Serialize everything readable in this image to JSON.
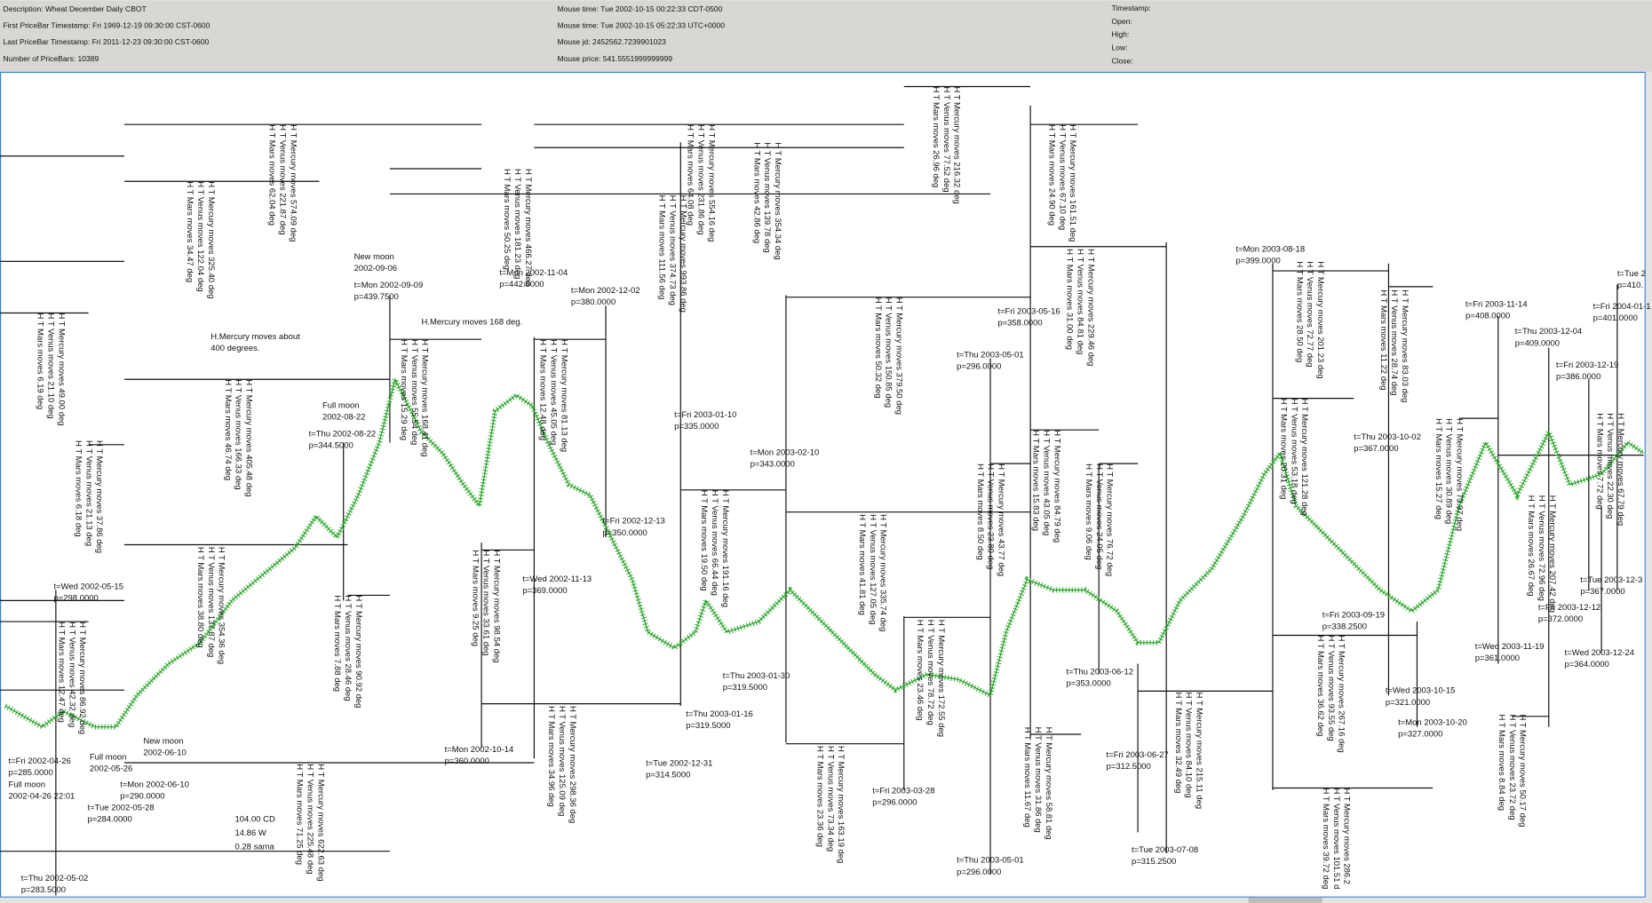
{
  "header": {
    "info": [
      "Description: Wheat December Daily CBOT",
      "First PriceBar Timestamp: Fri 1969-12-19 09:30:00 CST-0600",
      "Last PriceBar Timestamp: Fri 2011-12-23 09:30:00 CST-0600",
      "Number of PriceBars: 10389"
    ],
    "mouse": [
      "Mouse time:  Tue 2002-10-15 00:22:33 CDT-0500",
      "Mouse time:  Tue 2002-10-15 05:22:33 UTC+0000",
      "Mouse jd:    2452562.7239901023",
      "Mouse price:  541.5551999999999"
    ],
    "bar_fields": [
      "Timestamp:",
      "Open:",
      "High:",
      "Low:",
      "Close:"
    ]
  },
  "point_labels": [
    [
      "t=Fri 2002-04-26",
      "p=285.0000"
    ],
    [
      "Full moon",
      "2002-04-26 22:01"
    ],
    [
      "t=Thu 2002-05-02",
      "p=283.5000"
    ],
    [
      "Full moon",
      "2002-05-26"
    ],
    [
      "t=Tue 2002-05-28",
      "p=284.0000"
    ],
    [
      "New moon",
      "2002-06-10"
    ],
    [
      "t=Mon 2002-06-10",
      "p=290.0000"
    ],
    [
      "t=Wed 2002-05-15",
      "p=298.0000"
    ],
    [
      "Full moon",
      "2002-08-22"
    ],
    [
      "t=Thu 2002-08-22",
      "p=344.5000"
    ],
    [
      "New moon",
      "2002-09-06"
    ],
    [
      "t=Mon 2002-09-09",
      "p=439.7500"
    ],
    [
      "H.Mercury moves about",
      "400 degrees."
    ],
    [
      "H.Mercury moves 168 deg."
    ],
    [
      "t=Mon 2002-11-04",
      "p=442.5000"
    ],
    [
      "t=Mon 2002-12-02",
      "p=380.0000"
    ],
    [
      "t=Fri 2003-01-10",
      "p=335.0000"
    ],
    [
      "t=Mon 2003-02-10",
      "p=343.0000"
    ],
    [
      "t=Fri 2002-12-13",
      "p=350.0000"
    ],
    [
      "t=Wed 2002-11-13",
      "p=369.0000"
    ],
    [
      "t=Mon 2002-10-14",
      "p=360.0000"
    ],
    [
      "t=Tue 2002-12-31",
      "p=314.5000"
    ],
    [
      "t=Thu 2003-01-16",
      "p=319.5000"
    ],
    [
      "t=Thu 2003-01-30",
      "p=319.5000"
    ],
    [
      "t=Fri 2003-03-28",
      "p=296.0000"
    ],
    [
      "t=Thu 2003-05-01",
      "p=296.0000"
    ],
    [
      "t=Thu 2003-05-01",
      "p=296.0000"
    ],
    [
      "t=Fri 2003-05-16",
      "p=358.0000"
    ],
    [
      "t=Thu 2003-06-12",
      "p=353.0000"
    ],
    [
      "t=Fri 2003-06-27",
      "p=312.5000"
    ],
    [
      "t=Tue 2003-07-08",
      "p=315.2500"
    ],
    [
      "t=Mon 2003-08-18",
      "p=399.0000"
    ],
    [
      "t=Thu 2003-10-02",
      "p=367.0000"
    ],
    [
      "t=Fri 2003-09-19",
      "p=338.2500"
    ],
    [
      "t=Wed 2003-10-15",
      "p=321.0000"
    ],
    [
      "t=Mon 2003-10-20",
      "p=327.0000"
    ],
    [
      "t=Fri 2003-11-14",
      "p=408.0000"
    ],
    [
      "t=Thu 2003-12-04",
      "p=409.0000"
    ],
    [
      "t=Fri 2003-12-19",
      "p=386.0000"
    ],
    [
      "t=Fri 2004-01-1",
      "p=401.0000"
    ],
    [
      "t=Tue 2",
      "p=410."
    ],
    [
      "t=Wed 2003-11-19",
      "p=361.0000"
    ],
    [
      "t=Fri 2003-12-12",
      "p=372.0000"
    ],
    [
      "t=Tue 2003-12-3",
      "p=367.0000"
    ],
    [
      "t=Wed 2003-12-24",
      "p=364.0000"
    ],
    [
      "104.00 CD",
      "14.86 W",
      "0.28 sama"
    ]
  ],
  "planet_notes": [
    [
      "H T Mercury moves 574.09 deg",
      "H T Venus moves 221.87 deg",
      "H T Mars moves 62.04 deg"
    ],
    [
      "H T Mercury moves 325.40 deg",
      "H T Venus moves 122.04 deg",
      "H T Mars moves 34.47 deg"
    ],
    [
      "H T Mercury moves 49.00 deg",
      "H T Venus moves 21.10 deg",
      "H T Mars moves 6.19 deg"
    ],
    [
      "H T Mercury moves 37.86 deg",
      "H T Venus moves 21.13 deg",
      "H T Mars moves 6.18 deg"
    ],
    [
      "H T Mercury moves 405.48 deg",
      "H T Venus moves 166.33 deg",
      "H T Mars moves 46.74 deg"
    ],
    [
      "H T Mercury moves 354.36 deg",
      "H T Venus moves 137.87 deg",
      "H T Mars moves 38.80 deg"
    ],
    [
      "H T Mercury moves 86.92 deg",
      "H T Venus moves 42.32 deg",
      "H T Mars moves 12.47 deg"
    ],
    [
      "H T Mercury moves 90.92 deg",
      "H T Venus moves 28.46 deg",
      "H T Mars moves 7.88 deg"
    ],
    [
      "H T Mercury moves 622.63 deg",
      "H T Venus moves 225.48 deg",
      "H T Mars moves 71.25 deg"
    ],
    [
      "H T Mercury moves 168.41 deg",
      "H T Venus moves 55.54 deg",
      "H T Mars moves 15.29 deg"
    ],
    [
      "H T Mercury moves 466.27 deg",
      "H T Venus moves 181.23 deg",
      "H T Mars moves 50.25 deg"
    ],
    [
      "H T Mercury moves 81.13 deg",
      "H T Venus moves 45.05 deg",
      "H T Mars moves 12.48 deg"
    ],
    [
      "H T Mercury moves 98.54 deg",
      "H T Venus moves 33.61 deg",
      "H T Mars moves 9.25 deg"
    ],
    [
      "H T Mercury moves 298.36 deg",
      "H T Venus moves 125.09 deg",
      "H T Mars moves 34.96 deg"
    ],
    [
      "H T Mercury moves 554.16 deg",
      "H T Venus moves 231.86 deg",
      "H T Mars moves 64.08 deg"
    ],
    [
      "H T Mercury moves 993.86 deg",
      "H T Venus moves 374.73 deg",
      "H T Mars moves 111.56 deg"
    ],
    [
      "H T Mercury moves 354.34 deg",
      "H T Venus moves 139.78 deg",
      "H T Mars moves 42.86 deg"
    ],
    [
      "H T Mercury moves 216.32 deg",
      "H T Venus moves 77.52 deg",
      "H T Mars moves 26.96 deg"
    ],
    [
      "H T Mercury moves 161.51 deg",
      "H T Venus moves 67.10 deg",
      "H T Mars moves 24.90 deg"
    ],
    [
      "H T Mercury moves 229.46 deg",
      "H T Venus moves 84.81 deg",
      "H T Mars moves 31.00 deg"
    ],
    [
      "H T Mercury moves 379.50 deg",
      "H T Venus moves 150.85 deg",
      "H T Mars moves 50.32 deg"
    ],
    [
      "H T Mercury moves 191.16 deg",
      "H T Venus moves 66.44 deg",
      "H T Mars moves 19.50 deg"
    ],
    [
      "H T Mercury moves 335.74 deg",
      "H T Venus moves 127.05 deg",
      "H T Mars moves 41.81 deg"
    ],
    [
      "H T Mercury moves 43.77 deg",
      "H T Venus moves 23.80 deg",
      "H T Mars moves 8.50 deg"
    ],
    [
      "H T Mercury moves 84.79 deg",
      "H T Venus moves 43.05 deg",
      "H T Mars moves 15.83 deg"
    ],
    [
      "H T Mercury moves 76.72 deg",
      "H T Venus moves 24.05 deg",
      "H T Mars moves 9.06 deg"
    ],
    [
      "H T Mercury moves 172.55 deg",
      "H T Venus moves 78.72 deg",
      "H T Mars moves 23.46 deg"
    ],
    [
      "H T Mercury moves 163.19 deg",
      "H T Venus moves 73.34 deg",
      "H T Mars moves 23.36 deg"
    ],
    [
      "H T Mercury moves 58.81 deg",
      "H T Venus moves 31.86 deg",
      "H T Mars moves 11.67 deg"
    ],
    [
      "H T Mercury moves 215.11 deg",
      "H T Venus moves 84.10 deg",
      "H T Mars moves 32.49 deg"
    ],
    [
      "H T Mercury moves 201.23 deg",
      "H T Venus moves 72.77 deg",
      "H T Mars moves 28.50 deg"
    ],
    [
      "H T Mercury moves 83.03 deg",
      "H T Venus moves 28.74 deg",
      "H T Mars moves 11.22 deg"
    ],
    [
      "H T Mercury moves 121.28 deg",
      "H T Venus moves 53.18 deg",
      "H T Mars moves 20.31 deg"
    ],
    [
      "H T Mercury moves 267.16 deg",
      "H T Venus moves 93.55 deg",
      "H T Mars moves 36.62 deg"
    ],
    [
      "H T Mercury moves 286.2",
      "H T Venus moves 101.51 d",
      "H T Mars moves 39.72 deg"
    ],
    [
      "H T Mercury moves 73.97 deg",
      "H T Venus moves 30.89 deg",
      "H T Mars moves 15.27 deg"
    ],
    [
      "H T Mercury moves 207.42 deg",
      "H T Venus moves 72.96 deg",
      "H T Mars moves 26.67 deg"
    ],
    [
      "H T Mercury moves 67.79 deg",
      "H T Venus moves 22.30 deg",
      "H T Mars moves 7.72 deg"
    ],
    [
      "H T Mercury moves 50.17 deg",
      "H T Venus moves 23.72 deg",
      "H T Mars moves 8.84 deg"
    ]
  ]
}
